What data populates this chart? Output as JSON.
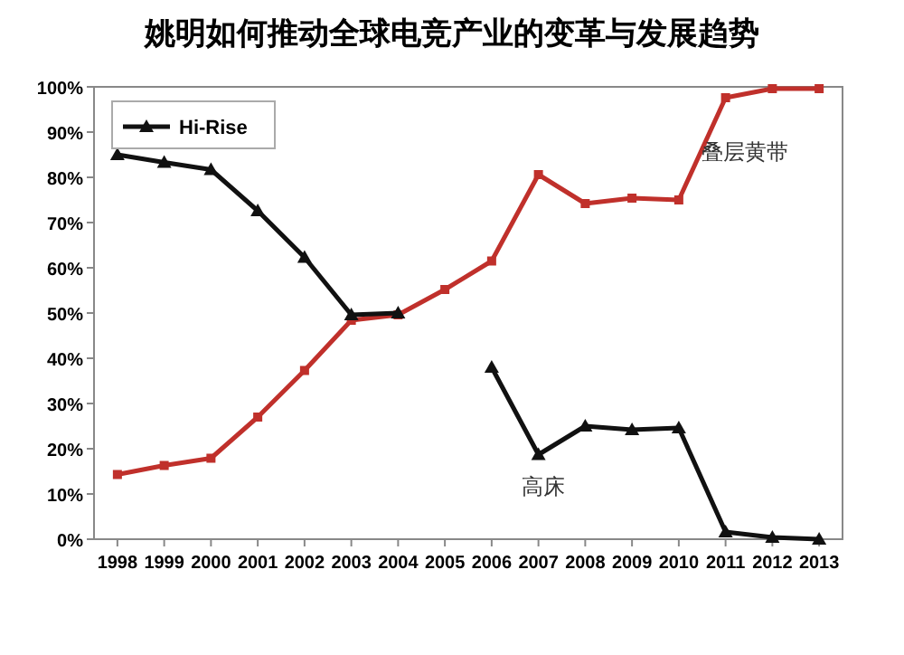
{
  "chart_data": {
    "type": "line",
    "title": "姚明如何推动全球电竞产业的变革与发展趋势",
    "categories": [
      "1998",
      "1999",
      "2000",
      "2001",
      "2002",
      "2003",
      "2004",
      "2005",
      "2006",
      "2007",
      "2008",
      "2009",
      "2010",
      "2011",
      "2012",
      "2013"
    ],
    "series": [
      {
        "name": "Hi-Rise",
        "color": "#111111",
        "marker": "triangle",
        "values": [
          85,
          83.3,
          81.7,
          72.6,
          62.3,
          49.6,
          50,
          null,
          38,
          18.7,
          25,
          24.2,
          24.6,
          1.6,
          0.4,
          0
        ]
      },
      {
        "color": "#c0302b",
        "marker": "square",
        "values": [
          14.3,
          16.3,
          17.9,
          27,
          37.3,
          48.4,
          49.6,
          55.2,
          61.5,
          80.6,
          74.2,
          75.4,
          75,
          97.6,
          99.6,
          99.6
        ]
      }
    ],
    "ylim": [
      0,
      100
    ],
    "yticks": [
      {
        "value": 0,
        "label": "0%"
      },
      {
        "value": 10,
        "label": "10%"
      },
      {
        "value": 20,
        "label": "20%"
      },
      {
        "value": 30,
        "label": "30%"
      },
      {
        "value": 40,
        "label": "40%"
      },
      {
        "value": 50,
        "label": "50%"
      },
      {
        "value": 60,
        "label": "60%"
      },
      {
        "value": 70,
        "label": "70%"
      },
      {
        "value": 80,
        "label": "80%"
      },
      {
        "value": 90,
        "label": "90%"
      },
      {
        "value": 100,
        "label": "100%"
      }
    ],
    "annotations": [
      "叠层黄带",
      "高床"
    ],
    "legend": "top left",
    "grid": false
  }
}
